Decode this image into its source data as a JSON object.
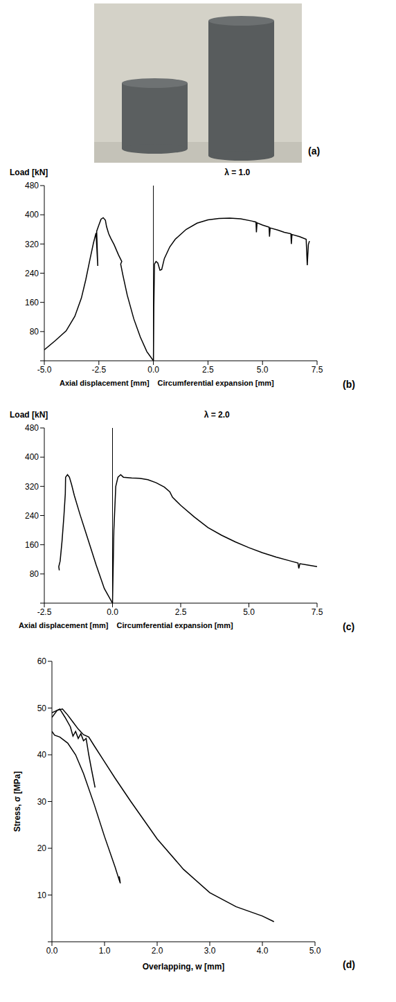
{
  "photo": {
    "label": "(a)"
  },
  "chart_data": [
    {
      "type": "line",
      "panel": "(b)",
      "ylabel": "Load [kN]",
      "xlabel": [
        "Axial displacement [mm]",
        "Circumferential expansion [mm]"
      ],
      "annotation": "λ = 1.0",
      "xlim": [
        -5,
        7.5
      ],
      "xticks": [
        {
          "value": -5,
          "label": "-5.0"
        },
        {
          "value": -2.5,
          "label": "-2.5"
        },
        {
          "value": 0,
          "label": "0.0"
        },
        {
          "value": 2.5,
          "label": "2.5"
        },
        {
          "value": 5,
          "label": "5.0"
        },
        {
          "value": 7.5,
          "label": "7.5"
        }
      ],
      "ylim": [
        0,
        480
      ],
      "yticks": [
        0,
        80,
        160,
        240,
        320,
        400,
        480
      ],
      "series": [
        {
          "color": "#000000",
          "x": [
            0,
            -0.3,
            -0.6,
            -0.9,
            -1.2,
            -1.4,
            -1.5,
            -1.45,
            -1.6,
            -1.8,
            -1.95,
            -2.05,
            -2.15,
            -2.2,
            -2.3,
            -2.4,
            -2.5,
            -2.6,
            -2.55,
            -2.63,
            -2.75,
            -2.9,
            -3.1,
            -3.3,
            -3.6,
            -4.0,
            -4.5,
            -5.0
          ],
          "values": [
            0,
            25,
            65,
            115,
            180,
            235,
            265,
            272,
            290,
            318,
            335,
            348,
            368,
            385,
            392,
            388,
            372,
            355,
            260,
            350,
            322,
            280,
            222,
            172,
            122,
            82,
            55,
            30
          ]
        },
        {
          "color": "#000000",
          "x": [
            0,
            0.02,
            0.05,
            0.12,
            0.2,
            0.3,
            0.38,
            0.5,
            0.75,
            1.0,
            1.5,
            2.0,
            2.5,
            3.0,
            3.5,
            4.0,
            4.5,
            4.7,
            4.72,
            4.75,
            5.0,
            5.3,
            5.32,
            5.35,
            5.7,
            6.0,
            6.3,
            6.32,
            6.35,
            6.7,
            7.0,
            7.05,
            7.1,
            7.15
          ],
          "values": [
            0,
            150,
            265,
            272,
            268,
            248,
            250,
            280,
            312,
            333,
            360,
            377,
            386,
            390,
            391,
            389,
            383,
            380,
            352,
            378,
            372,
            366,
            340,
            364,
            358,
            352,
            348,
            320,
            346,
            340,
            333,
            262,
            318,
            328
          ]
        }
      ]
    },
    {
      "type": "line",
      "panel": "(c)",
      "ylabel": "Load [kN]",
      "xlabel": [
        "Axial displacement [mm]",
        "Circumferential expansion [mm]"
      ],
      "annotation": "λ = 2.0",
      "xlim": [
        -2.5,
        7.5
      ],
      "xticks": [
        {
          "value": -2.5,
          "label": "-2.5"
        },
        {
          "value": 0,
          "label": "0.0"
        },
        {
          "value": 2.5,
          "label": "2.5"
        },
        {
          "value": 5,
          "label": "5.0"
        },
        {
          "value": 7.5,
          "label": "7.5"
        }
      ],
      "ylim": [
        0,
        480
      ],
      "yticks": [
        0,
        80,
        160,
        240,
        320,
        400,
        480
      ],
      "series": [
        {
          "color": "#000000",
          "x": [
            0,
            -0.3,
            -0.6,
            -0.9,
            -1.2,
            -1.4,
            -1.5,
            -1.58,
            -1.65,
            -1.72,
            -1.73,
            -1.78,
            -1.85,
            -1.92,
            -1.97,
            -1.95
          ],
          "values": [
            0,
            40,
            105,
            175,
            245,
            295,
            325,
            345,
            352,
            345,
            300,
            240,
            170,
            115,
            100,
            90
          ]
        },
        {
          "color": "#000000",
          "x": [
            0,
            0.05,
            0.12,
            0.2,
            0.3,
            0.4,
            0.7,
            1.0,
            1.3,
            1.6,
            1.9,
            2.1,
            2.2,
            2.5,
            3.0,
            3.5,
            4.0,
            4.5,
            5.0,
            5.5,
            6.0,
            6.5,
            6.8,
            6.83,
            6.87,
            7.2,
            7.5
          ],
          "values": [
            0,
            200,
            320,
            345,
            352,
            345,
            343,
            342,
            338,
            330,
            318,
            305,
            290,
            268,
            236,
            207,
            186,
            168,
            152,
            138,
            126,
            116,
            110,
            95,
            108,
            104,
            100
          ]
        }
      ]
    },
    {
      "type": "line",
      "panel": "(d)",
      "ylabel": "Stress, σ [MPa]",
      "xlabel": "Overlapping, w [mm]",
      "xlim": [
        0,
        5
      ],
      "xticks": [
        {
          "value": 0,
          "label": "0.0"
        },
        {
          "value": 1,
          "label": "1.0"
        },
        {
          "value": 2,
          "label": "2.0"
        },
        {
          "value": 3,
          "label": "3.0"
        },
        {
          "value": 4,
          "label": "4.0"
        },
        {
          "value": 5,
          "label": "5.0"
        }
      ],
      "ylim": [
        0,
        60
      ],
      "yticks": [
        0,
        10,
        20,
        30,
        40,
        50,
        60
      ],
      "series": [
        {
          "color": "#000000",
          "x": [
            0,
            0.1,
            0.2,
            0.3,
            0.4,
            0.5,
            0.6,
            0.7,
            0.8,
            1.0,
            1.2,
            1.5,
            2.0,
            2.5,
            3.0,
            3.5,
            4.0,
            4.22
          ],
          "values": [
            48,
            49.5,
            49.8,
            48.5,
            47,
            45.5,
            44.3,
            43.8,
            42,
            38.5,
            35,
            30,
            22,
            15.5,
            10.5,
            7.5,
            5.5,
            4.3
          ]
        },
        {
          "color": "#000000",
          "x": [
            0,
            0.15,
            0.25,
            0.35,
            0.4,
            0.45,
            0.5,
            0.55,
            0.6,
            0.65,
            0.7,
            0.75,
            0.82
          ],
          "values": [
            49,
            49.8,
            48,
            46,
            44,
            45,
            43.5,
            44.5,
            43,
            43.5,
            40,
            37,
            33
          ]
        },
        {
          "color": "#000000",
          "x": [
            0,
            0.05,
            0.15,
            0.3,
            0.45,
            0.6,
            0.8,
            1.0,
            1.2,
            1.27,
            1.3,
            1.28
          ],
          "values": [
            45,
            44.2,
            43.8,
            42.5,
            40,
            36,
            29.5,
            22.5,
            16,
            13.5,
            12.5,
            14
          ]
        }
      ]
    }
  ]
}
